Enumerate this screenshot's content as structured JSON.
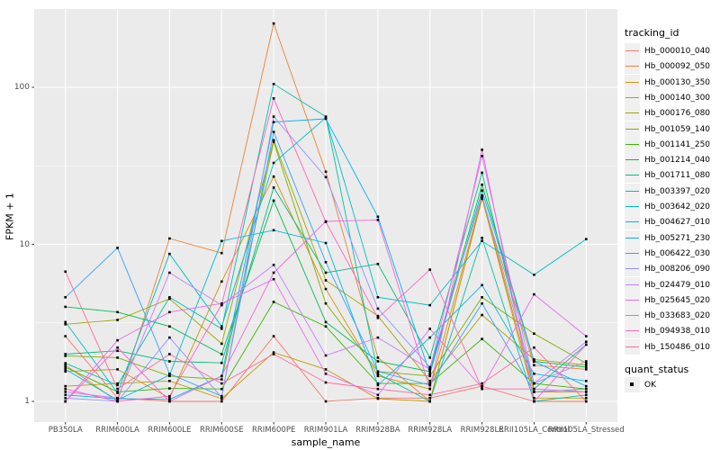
{
  "chart_data": {
    "type": "line",
    "xlabel": "sample_name",
    "ylabel": "FPKM + 1",
    "y_scale": "log10",
    "y_ticks": [
      1,
      10,
      100
    ],
    "y_minor_ticks": [
      3.162,
      31.62,
      316.2
    ],
    "ylim_log": [
      0,
      2.55
    ],
    "grid": "on",
    "panel_bg": "#EBEBEB",
    "grid_color": "#FFFFFF",
    "axis_text_color": "#4D4D4D",
    "legend_position": "right",
    "legend_title": "tracking_id",
    "legend2_title": "quant_status",
    "legend2_item": "OK",
    "categories": [
      "PB350LA",
      "RRIM600LA",
      "RRIM600LE",
      "RRIM600SE",
      "RRIM600PE",
      "RRIM901LA",
      "RRIM928BA",
      "RRIM928LA",
      "RRIM928LE",
      "RRII105LA_Control",
      "RRII105LA_Stressed"
    ],
    "series": [
      {
        "name": "Hb_000010_040",
        "color": "#F8766D",
        "values": [
          2.6,
          1.05,
          1.0,
          1.0,
          2.6,
          1.0,
          1.05,
          1.05,
          1.25,
          1.0,
          1.0
        ]
      },
      {
        "name": "Hb_000092_050",
        "color": "#EA8331",
        "values": [
          1.7,
          1.0,
          10.9,
          8.8,
          255,
          29,
          1.9,
          1.0,
          19.5,
          1.7,
          1.6
        ]
      },
      {
        "name": "Hb_000130_350",
        "color": "#D89000",
        "values": [
          1.55,
          1.6,
          1.05,
          5.8,
          27,
          5.2,
          1.45,
          1.2,
          20,
          1.15,
          1.15
        ]
      },
      {
        "name": "Hb_000140_300",
        "color": "#C09B00",
        "values": [
          1.25,
          1.3,
          1.35,
          1.04,
          2.05,
          1.6,
          1.04,
          1.0,
          19.8,
          1.05,
          1.05
        ]
      },
      {
        "name": "Hb_000176_080",
        "color": "#A3A500",
        "values": [
          3.1,
          3.3,
          4.5,
          2.33,
          46,
          5.9,
          3.5,
          1.35,
          3.55,
          1.85,
          1.7
        ]
      },
      {
        "name": "Hb_001059_140",
        "color": "#7CAE00",
        "values": [
          1.95,
          1.9,
          1.45,
          1.38,
          45,
          4.2,
          1.55,
          1.45,
          4.6,
          2.7,
          1.75
        ]
      },
      {
        "name": "Hb_001141_250",
        "color": "#39B600",
        "values": [
          1.65,
          1.15,
          1.21,
          1.2,
          4.3,
          3.0,
          1.3,
          1.3,
          2.5,
          1.3,
          1.2
        ]
      },
      {
        "name": "Hb_001214_040",
        "color": "#00BB4E",
        "values": [
          4.0,
          3.7,
          3.0,
          2.0,
          19,
          3.2,
          1.8,
          1.55,
          24,
          1.8,
          1.65
        ]
      },
      {
        "name": "Hb_001711_080",
        "color": "#00BF7D",
        "values": [
          2.0,
          2.1,
          1.8,
          1.76,
          23,
          6.6,
          7.5,
          1.9,
          28.6,
          1.2,
          2.3
        ]
      },
      {
        "name": "Hb_003397_020",
        "color": "#00C1A3",
        "values": [
          1.75,
          1.27,
          4.6,
          2.9,
          105,
          65,
          1.5,
          1.0,
          11,
          1.0,
          1.1
        ]
      },
      {
        "name": "Hb_003642_020",
        "color": "#00BFC4",
        "values": [
          3.2,
          1.13,
          8.7,
          3.0,
          33,
          64,
          4.6,
          4.1,
          10.5,
          6.4,
          10.8
        ]
      },
      {
        "name": "Hb_004627_010",
        "color": "#00BBDA",
        "values": [
          1.6,
          1.02,
          1.47,
          10.5,
          12.3,
          10.2,
          1.27,
          2.55,
          5.5,
          1.5,
          1.35
        ]
      },
      {
        "name": "Hb_005271_230",
        "color": "#00B0F6",
        "values": [
          1.1,
          1.04,
          1.03,
          1.45,
          60,
          63,
          15,
          1.5,
          22,
          1.8,
          1.25
        ]
      },
      {
        "name": "Hb_006422_030",
        "color": "#35A2FF",
        "values": [
          4.6,
          9.5,
          1.5,
          1.08,
          52,
          7.7,
          1.55,
          1.27,
          4.2,
          1.15,
          1.2
        ]
      },
      {
        "name": "Hb_008206_090",
        "color": "#9590FF",
        "values": [
          1.05,
          1.0,
          2.55,
          1.06,
          65,
          26.8,
          3.9,
          1.65,
          20.5,
          1.3,
          1.8
        ]
      },
      {
        "name": "Hb_024479_010",
        "color": "#C77CFF",
        "values": [
          1.15,
          1.05,
          6.6,
          4.1,
          7.4,
          1.96,
          2.55,
          1.6,
          36.5,
          1.3,
          2.4
        ]
      },
      {
        "name": "Hb_025645_020",
        "color": "#E76BF3",
        "values": [
          1.0,
          2.45,
          3.7,
          4.2,
          6.0,
          1.5,
          1.1,
          2.9,
          1.22,
          4.8,
          2.6
        ]
      },
      {
        "name": "Hb_033683_020",
        "color": "#FA62DB",
        "values": [
          1.0,
          2.2,
          1.0,
          1.45,
          6.6,
          14,
          14.3,
          1.2,
          40,
          1.0,
          2.3
        ]
      },
      {
        "name": "Hb_094938_010",
        "color": "#FF62BC",
        "values": [
          1.2,
          1.0,
          1.08,
          4.15,
          85,
          13.9,
          3.4,
          6.9,
          1.2,
          1.2,
          1.15
        ]
      },
      {
        "name": "Hb_150486_010",
        "color": "#FF6A98",
        "values": [
          6.7,
          1.2,
          2.0,
          1.3,
          2.0,
          1.32,
          1.2,
          1.1,
          1.3,
          2.2,
          1.0
        ]
      }
    ]
  }
}
